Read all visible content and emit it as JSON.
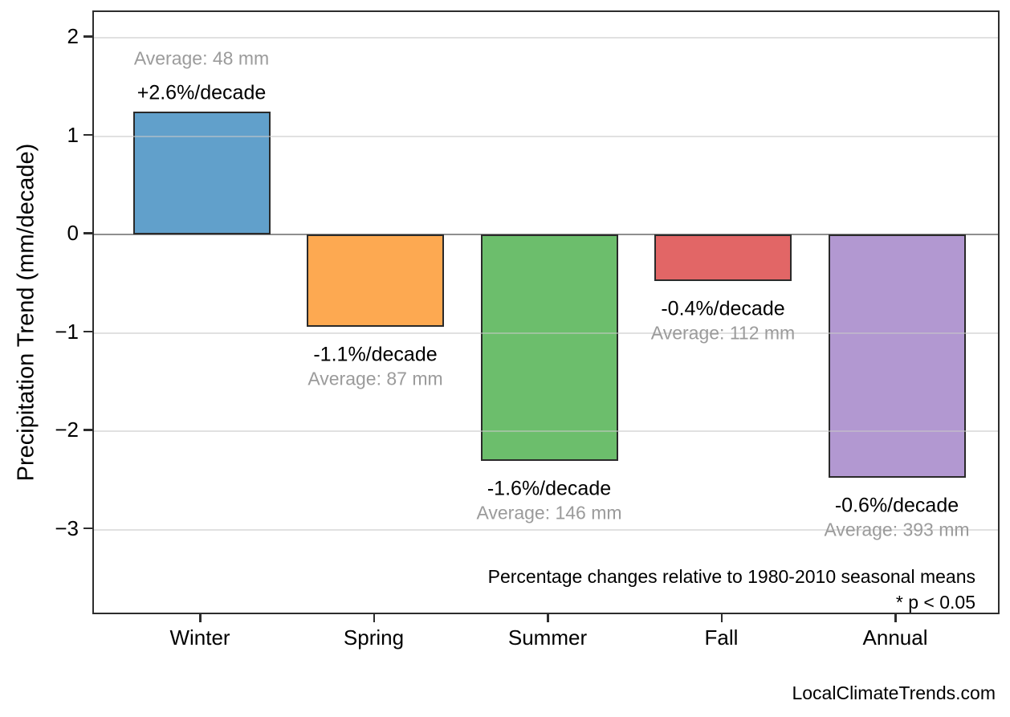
{
  "chart_data": {
    "type": "bar",
    "ylabel": "Precipitation Trend (mm/decade)",
    "categories": [
      "Winter",
      "Spring",
      "Summer",
      "Fall",
      "Annual"
    ],
    "series": [
      {
        "name": "Precipitation trend (mm/decade)",
        "values": [
          1.25,
          -0.94,
          -2.3,
          -0.47,
          -2.47
        ]
      }
    ],
    "bars": [
      {
        "category": "Winter",
        "value_mm_per_decade": 1.25,
        "pct_label": "+2.6%/decade",
        "avg_label": "Average: 48 mm",
        "color": "#61a0cb"
      },
      {
        "category": "Spring",
        "value_mm_per_decade": -0.94,
        "pct_label": "-1.1%/decade",
        "avg_label": "Average: 87 mm",
        "color": "#fda951"
      },
      {
        "category": "Summer",
        "value_mm_per_decade": -2.3,
        "pct_label": "-1.6%/decade",
        "avg_label": "Average: 146 mm",
        "color": "#6cbe6c"
      },
      {
        "category": "Fall",
        "value_mm_per_decade": -0.47,
        "pct_label": "-0.4%/decade",
        "avg_label": "Average: 112 mm",
        "color": "#e26666"
      },
      {
        "category": "Annual",
        "value_mm_per_decade": -2.47,
        "pct_label": "-0.6%/decade",
        "avg_label": "Average: 393 mm",
        "color": "#b298d1"
      }
    ],
    "yticks": [
      {
        "value": 2,
        "label": "2"
      },
      {
        "value": 1,
        "label": "1"
      },
      {
        "value": 0,
        "label": "0"
      },
      {
        "value": -1,
        "label": "−1"
      },
      {
        "value": -2,
        "label": "−2"
      },
      {
        "value": -3,
        "label": "−3"
      }
    ],
    "ylim": [
      -3.88,
      2.26
    ],
    "grid": true,
    "legend": "none",
    "annotations": [
      "Percentage changes relative to 1980-2010 seasonal means",
      "* p < 0.05"
    ],
    "watermark": "LocalClimateTrends.com",
    "colors": {
      "bar_edge": "#2a2a2a",
      "zero_line": "#8f8f8f",
      "gridline": "#cccccc",
      "gray_text": "#9b9b9b",
      "black_text": "#000000",
      "spine": "#2d2d2d"
    }
  }
}
